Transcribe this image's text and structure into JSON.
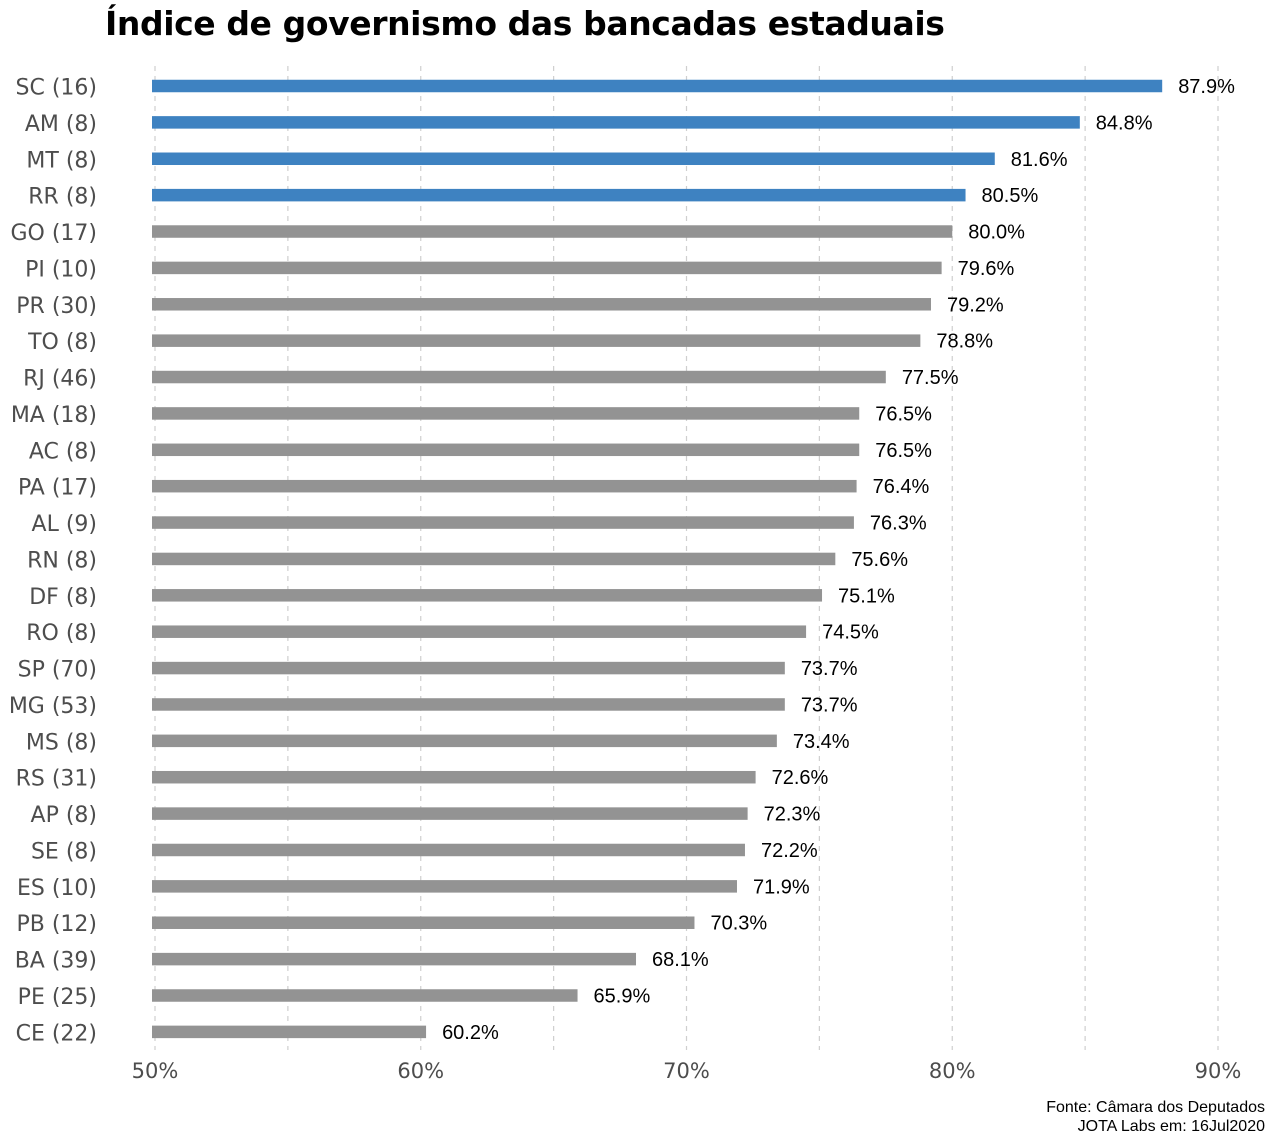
{
  "chart_data": {
    "type": "bar",
    "orientation": "horizontal",
    "title": "Índice de governismo das bancadas estaduais",
    "xlabel": "",
    "ylabel": "",
    "xlim": [
      50,
      90
    ],
    "x_ticks": [
      50,
      60,
      70,
      80,
      90
    ],
    "x_tick_labels": [
      "50%",
      "60%",
      "70%",
      "80%",
      "90%"
    ],
    "x_minor_gridlines": [
      55,
      65,
      75,
      85
    ],
    "grid": "vertical-dashed",
    "categories": [
      "SC (16)",
      "AM (8)",
      "MT (8)",
      "RR (8)",
      "GO (17)",
      "PI (10)",
      "PR (30)",
      "TO (8)",
      "RJ (46)",
      "MA (18)",
      "AC (8)",
      "PA (17)",
      "AL (9)",
      "RN (8)",
      "DF (8)",
      "RO (8)",
      "SP (70)",
      "MG (53)",
      "MS (8)",
      "RS (31)",
      "AP (8)",
      "SE (8)",
      "ES (10)",
      "PB (12)",
      "BA (39)",
      "PE (25)",
      "CE (22)"
    ],
    "values": [
      87.9,
      84.8,
      81.6,
      80.5,
      80.0,
      79.6,
      79.2,
      78.8,
      77.5,
      76.5,
      76.5,
      76.4,
      76.3,
      75.6,
      75.1,
      74.5,
      73.7,
      73.7,
      73.4,
      72.6,
      72.3,
      72.2,
      71.9,
      70.3,
      68.1,
      65.9,
      60.2
    ],
    "value_labels": [
      "87.9%",
      "84.8%",
      "81.6%",
      "80.5%",
      "80.0%",
      "79.6%",
      "79.2%",
      "78.8%",
      "77.5%",
      "76.5%",
      "76.5%",
      "76.4%",
      "76.3%",
      "75.6%",
      "75.1%",
      "74.5%",
      "73.7%",
      "73.7%",
      "73.4%",
      "72.6%",
      "72.3%",
      "72.2%",
      "71.9%",
      "70.3%",
      "68.1%",
      "65.9%",
      "60.2%"
    ],
    "highlighted": [
      true,
      true,
      true,
      true,
      false,
      false,
      false,
      false,
      false,
      false,
      false,
      false,
      false,
      false,
      false,
      false,
      false,
      false,
      false,
      false,
      false,
      false,
      false,
      false,
      false,
      false,
      false
    ],
    "colors": {
      "highlight": "#3e82c1",
      "default": "#939393",
      "grid": "#cfcfcf",
      "axis_text": "#4d4d4d"
    }
  },
  "source": {
    "line1": "Fonte: Câmara dos Deputados",
    "line2": "JOTA Labs em: 16Jul2020"
  }
}
